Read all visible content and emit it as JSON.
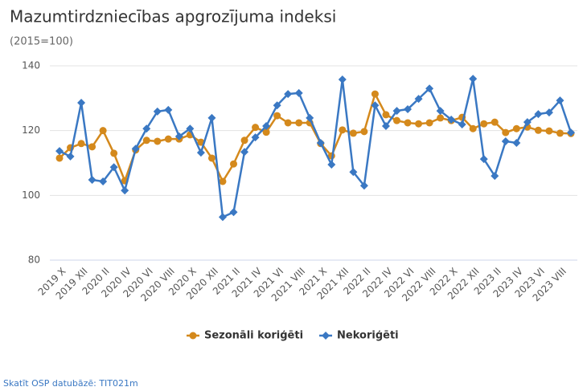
{
  "chart_data": {
    "type": "line",
    "title": "Mazumtirdzniecības apgrozījuma indeksi",
    "subtitle": "(2015=100)",
    "categories": [
      "2019 X",
      null,
      "2019 XII",
      null,
      "2020 II",
      null,
      "2020 IV",
      null,
      "2020 VI",
      null,
      "2020 VIII",
      null,
      "2020 X",
      null,
      "2020 XII",
      null,
      "2021 II",
      null,
      "2021 IV",
      null,
      "2021 VI",
      null,
      "2021 VIII",
      null,
      "2021 X",
      null,
      "2021 XII",
      null,
      "2022 II",
      null,
      "2022 IV",
      null,
      "2022 VI",
      null,
      "2022 VIII",
      null,
      "2022 X",
      null,
      "2022 XII",
      null,
      "2023 II",
      null,
      "2023 IV",
      null,
      "2023 VI",
      null,
      "2023 VIII",
      null
    ],
    "series": [
      {
        "name": "Sezonāli koriģēti",
        "color": "#d4891c",
        "values": [
          111.5,
          114.7,
          116,
          115,
          120,
          113,
          104.5,
          114,
          117,
          116.7,
          117.4,
          117.4,
          118.7,
          116.4,
          111.5,
          104.3,
          109.7,
          117,
          121,
          119.5,
          124.6,
          122.4,
          122.4,
          122.4,
          116,
          112.2,
          120.2,
          119.2,
          119.7,
          131.3,
          124.9,
          123.1,
          122.4,
          122.1,
          122.4,
          123.9,
          123.1,
          124.1,
          120.6,
          122.1,
          122.6,
          119.4,
          120.6,
          121.1,
          120.1,
          119.9,
          119.2,
          119.1
        ]
      },
      {
        "name": "Nekoriģēti",
        "color": "#3a78c3",
        "values": [
          113.7,
          112,
          128.6,
          104.8,
          104.3,
          108.7,
          101.5,
          114.4,
          120.6,
          125.9,
          126.4,
          118.2,
          120.6,
          113.2,
          123.9,
          93.3,
          94.8,
          113.4,
          117.9,
          121.4,
          127.8,
          131.3,
          131.6,
          123.9,
          116.2,
          109.5,
          135.8,
          107.2,
          103,
          127.8,
          121.4,
          126.1,
          126.6,
          129.8,
          133,
          126.1,
          123.4,
          121.9,
          136,
          111.2,
          106,
          116.7,
          116.2,
          122.6,
          125.1,
          125.6,
          129.3,
          119.4
        ]
      }
    ],
    "ylim": [
      80,
      140
    ],
    "yticks": [
      80,
      100,
      120,
      140
    ],
    "grid": true,
    "legend": "bottom"
  },
  "footer_link": "Skatīt OSP datubāzē: TIT021m"
}
